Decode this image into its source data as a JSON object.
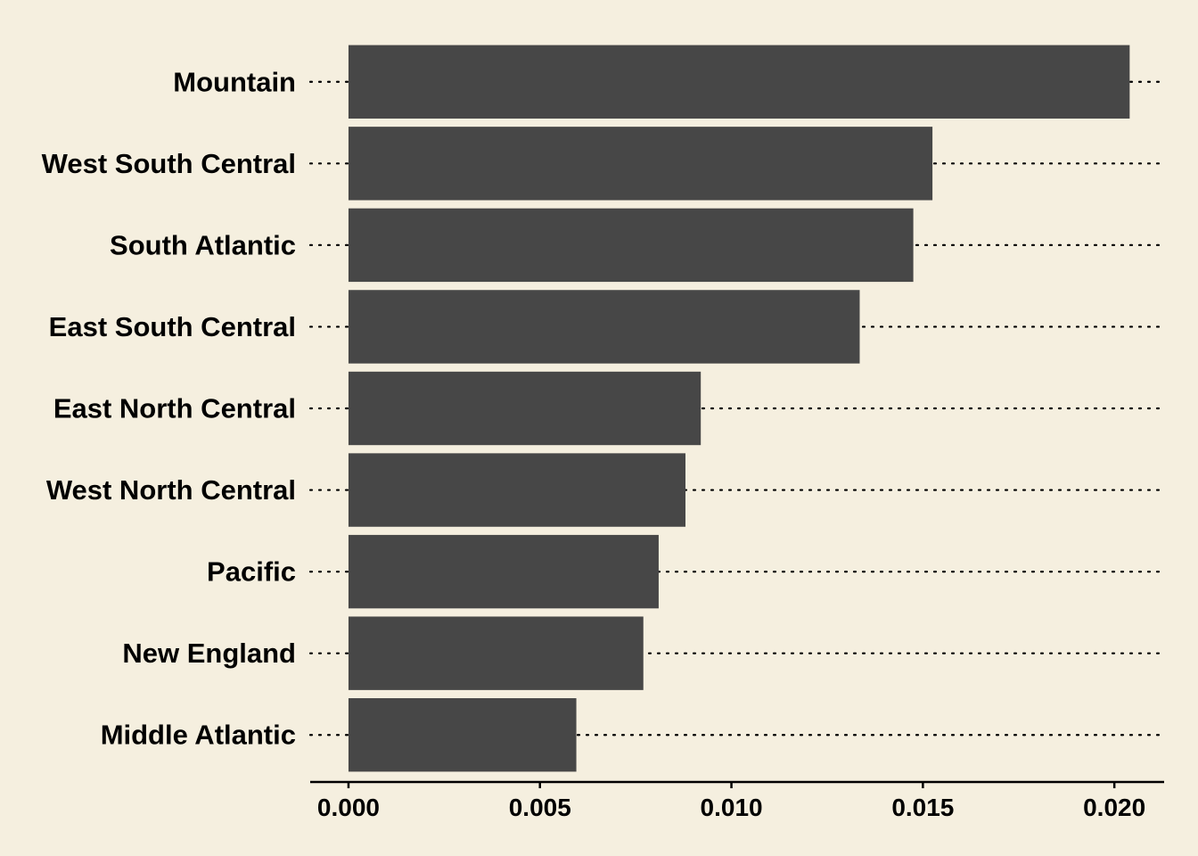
{
  "colors": {
    "background": "#f5efdf",
    "bar": "#474747",
    "text": "#000000",
    "gridline": "#000000"
  },
  "chart_data": {
    "type": "bar",
    "orientation": "horizontal",
    "title": "",
    "xlabel": "",
    "ylabel": "",
    "categories": [
      "Mountain",
      "West South Central",
      "South Atlantic",
      "East South Central",
      "East North Central",
      "West North Central",
      "Pacific",
      "New England",
      "Middle Atlantic"
    ],
    "values": [
      0.0204,
      0.01525,
      0.01475,
      0.01335,
      0.0092,
      0.0088,
      0.0081,
      0.0077,
      0.00595
    ],
    "xlim": [
      -0.001,
      0.0213
    ],
    "xticks": [
      0,
      0.005,
      0.01,
      0.015,
      0.02
    ],
    "xtick_labels": [
      "0.000",
      "0.005",
      "0.010",
      "0.015",
      "0.020"
    ],
    "grid": "dotted horizontal lines at each category",
    "legend": "none"
  }
}
